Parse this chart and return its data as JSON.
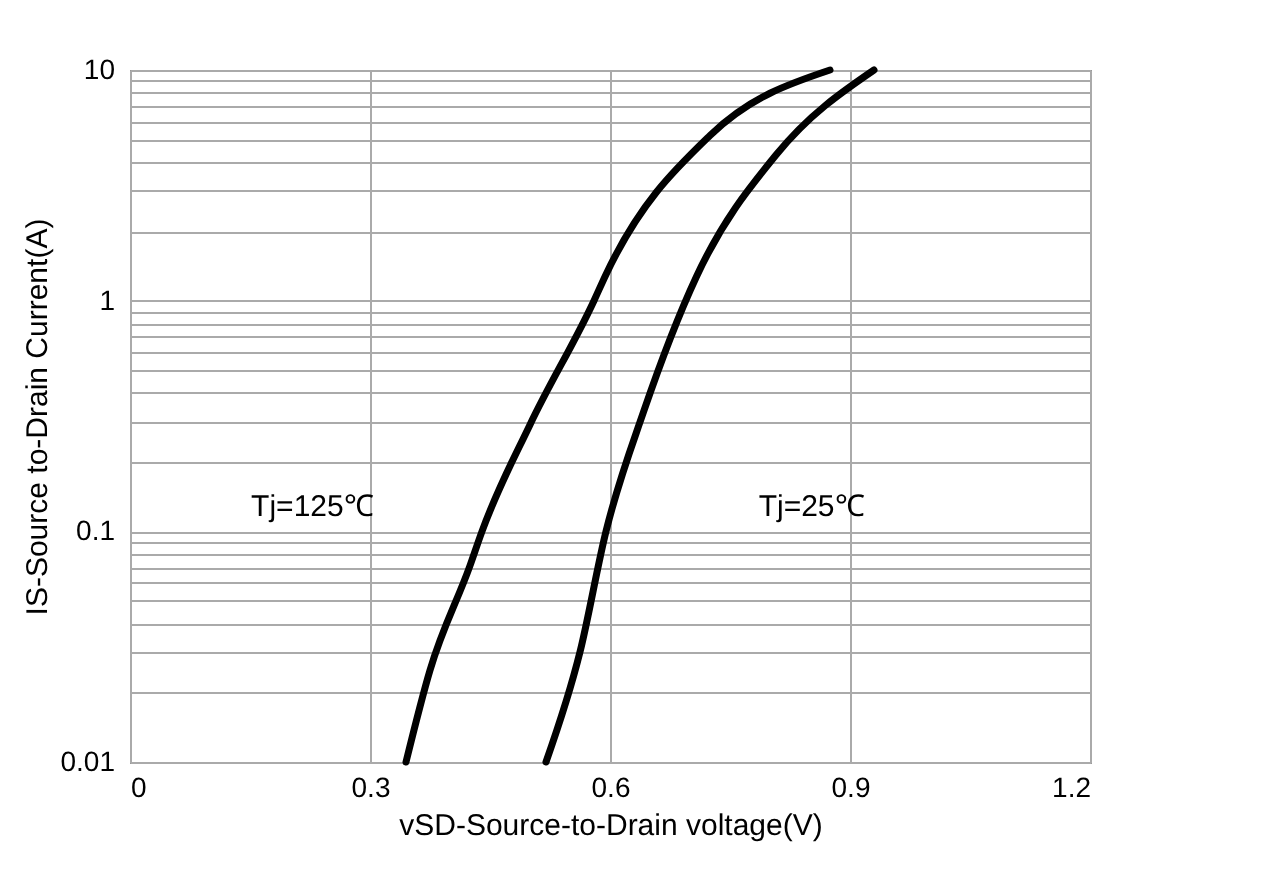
{
  "chart_data": {
    "type": "line",
    "xlabel": "vSD-Source-to-Drain voltage(V)",
    "ylabel": "IS-Source to-Drain Current(A)",
    "xlim": [
      0,
      1.2
    ],
    "xticks": [
      0,
      0.3,
      0.6,
      0.9,
      1.2
    ],
    "ylim": [
      0.01,
      10
    ],
    "yticks": [
      0.01,
      {
        "value": 0.02,
        "label": null
      },
      {
        "value": 0.03,
        "label": null
      },
      {
        "value": 0.04,
        "label": null
      },
      {
        "value": 0.05,
        "label": null
      },
      {
        "value": 0.06,
        "label": null
      },
      {
        "value": 0.07,
        "label": null
      },
      {
        "value": 0.08,
        "label": null
      },
      {
        "value": 0.09,
        "label": null
      },
      0.1,
      {
        "value": 0.2,
        "label": null
      },
      {
        "value": 0.3,
        "label": null
      },
      {
        "value": 0.4,
        "label": null
      },
      {
        "value": 0.5,
        "label": null
      },
      {
        "value": 0.6,
        "label": null
      },
      {
        "value": 0.7,
        "label": null
      },
      {
        "value": 0.8,
        "label": null
      },
      {
        "value": 0.9,
        "label": null
      },
      1,
      {
        "value": 2,
        "label": null
      },
      {
        "value": 3,
        "label": null
      },
      {
        "value": 4,
        "label": null
      },
      {
        "value": 5,
        "label": null
      },
      {
        "value": 6,
        "label": null
      },
      {
        "value": 7,
        "label": null
      },
      {
        "value": 8,
        "label": null
      },
      {
        "value": 9,
        "label": null
      },
      10
    ],
    "log": "y",
    "grid": true,
    "line_style": "solid",
    "marker": "none",
    "series": [
      {
        "color": "#000000",
        "x": [
          0.345,
          0.375,
          0.425,
          0.44,
          0.5,
          0.58,
          0.595,
          0.725,
          0.875
        ],
        "values": [
          0.01,
          0.025,
          0.071,
          0.1,
          0.29,
          1,
          1.3,
          5.2,
          10
        ]
      },
      {
        "color": "#000000",
        "x": [
          0.52,
          0.5625,
          0.595,
          0.642,
          0.708,
          0.808,
          0.93
        ],
        "values": [
          0.01,
          0.03,
          0.1,
          0.33,
          1.27,
          4.3,
          10
        ]
      }
    ],
    "annotations": [
      "Tj=125℃",
      "Tj=25℃"
    ]
  }
}
